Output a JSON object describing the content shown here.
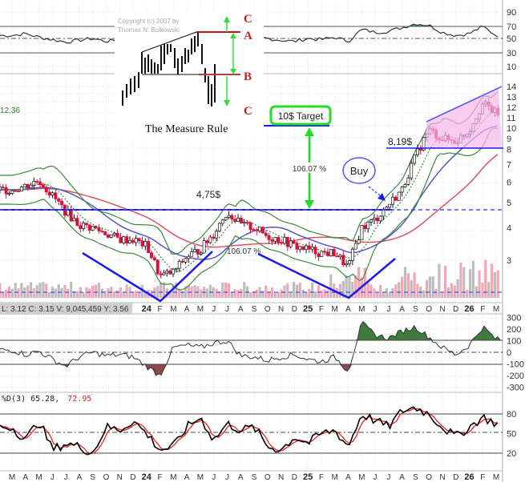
{
  "chart_data": {
    "type": "candlestick",
    "title": "The Measure Rule",
    "copyright": [
      "Copyright (c) 2007 by",
      "Thomas N. Bulkowski"
    ],
    "months": [
      "M",
      "A",
      "M",
      "J",
      "J",
      "A",
      "S",
      "O",
      "N",
      "D",
      "24",
      "F",
      "M",
      "A",
      "M",
      "J",
      "J",
      "A",
      "S",
      "O",
      "N",
      "D",
      "25",
      "F",
      "M",
      "A",
      "M",
      "J",
      "J",
      "A",
      "S",
      "O",
      "N",
      "D",
      "26",
      "F",
      "M"
    ],
    "price_monthly_close": [
      5.6,
      5.8,
      6.1,
      5.3,
      4.6,
      4.1,
      4.0,
      3.8,
      3.6,
      3.6,
      3.4,
      2.6,
      2.7,
      3.1,
      3.3,
      3.8,
      4.6,
      4.1,
      4.0,
      3.7,
      3.6,
      3.4,
      3.3,
      3.2,
      3.2,
      2.8,
      4.0,
      4.3,
      4.9,
      5.6,
      7.5,
      9.5,
      8.8,
      8.6,
      9.5,
      12.0,
      11.0
    ],
    "rsi_monthly": [
      55,
      58,
      52,
      48,
      44,
      47,
      50,
      45,
      48,
      46,
      40,
      38,
      45,
      55,
      50,
      60,
      55,
      48,
      52,
      50,
      47,
      45,
      50,
      48,
      52,
      45,
      65,
      60,
      62,
      68,
      75,
      72,
      60,
      55,
      58,
      70,
      55
    ],
    "cci_monthly": [
      20,
      -20,
      10,
      -60,
      -120,
      -40,
      0,
      -30,
      -20,
      -40,
      -120,
      -200,
      40,
      60,
      40,
      80,
      100,
      -30,
      -40,
      -70,
      -40,
      -20,
      -60,
      -80,
      -40,
      -160,
      250,
      150,
      120,
      180,
      220,
      130,
      40,
      -20,
      60,
      220,
      110
    ],
    "stoch_monthly": [
      60,
      40,
      70,
      25,
      35,
      30,
      20,
      60,
      55,
      70,
      50,
      25,
      30,
      60,
      75,
      40,
      65,
      55,
      60,
      30,
      25,
      45,
      35,
      50,
      55,
      30,
      80,
      70,
      60,
      85,
      90,
      80,
      60,
      45,
      60,
      75,
      65
    ],
    "price_axis": [
      "14",
      "13",
      "12",
      "11",
      "10",
      "9",
      "8",
      "7",
      "6",
      "5",
      "4",
      "3"
    ],
    "top_axis": [
      "90",
      "70",
      "50",
      "30",
      "10"
    ],
    "cci_axis": [
      "300",
      "200",
      "100",
      "0",
      "-100",
      "-200",
      "-300"
    ],
    "stoch_axis": [
      "80",
      "50",
      "20"
    ],
    "left_value": "12.36",
    "stats": "L: 3.12  C: 3.15  V: 9,045,459  Y: 3.56",
    "stoch_label": "%D(3) 65.28,",
    "stoch_value2": "72.95",
    "annotations": {
      "neckline": "4,75$",
      "target": "10$ Target",
      "measure_pct_1": "106.07 %",
      "measure_pct_2": "106.07 %",
      "buy": "Buy",
      "breakout": "8,19$",
      "inset_c_top": "C",
      "inset_a": "A",
      "inset_b": "B",
      "inset_c_bottom": "C"
    },
    "levels": {
      "neckline": 4.75,
      "target": 10,
      "breakout": 8.19,
      "support": 2.55
    },
    "colors": {
      "up": "#ffffff",
      "down": "#d8103a",
      "bollinger": "#3a8a3a",
      "ma_long": "#e05060",
      "ma_mid": "#5555cc",
      "pattern": "#1a1aee",
      "target_box": "#22dd22",
      "cci_pos": "#3f7a3f",
      "cci_neg": "#8a4a4a",
      "stoch_k": "#000000",
      "stoch_d": "#ee2222"
    }
  }
}
